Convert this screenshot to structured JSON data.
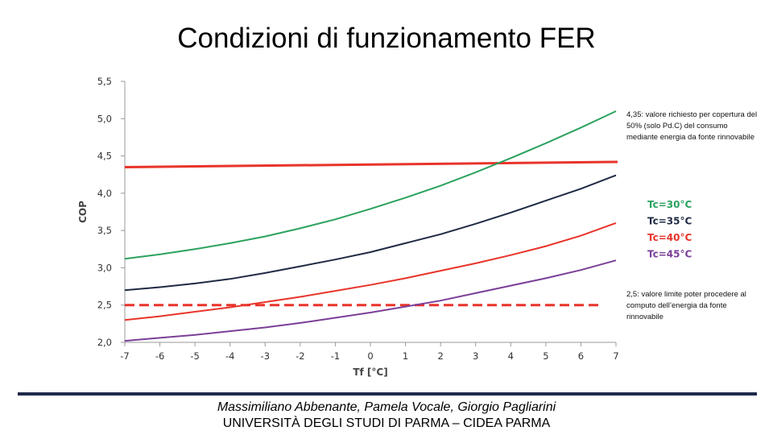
{
  "slide": {
    "title": "Condizioni di funzionamento FER",
    "footer_authors": "Massimiliano Abbenante, Pamela Vocale, Giorgio Pagliarini",
    "footer_org": "UNIVERSITÀ DEGLI STUDI DI PARMA – CIDEA PARMA"
  },
  "chart_data": {
    "type": "line",
    "title": "",
    "xlabel": "Tf [°C]",
    "ylabel": "COP",
    "xlim": [
      -7,
      7
    ],
    "ylim": [
      2.0,
      5.5
    ],
    "x": [
      -7,
      -6,
      -5,
      -4,
      -3,
      -2,
      -1,
      0,
      1,
      2,
      3,
      4,
      5,
      6,
      7
    ],
    "x_tick_labels": [
      "-7",
      "-6",
      "-5",
      "-4",
      "-3",
      "-2",
      "-1",
      "0",
      "1",
      "2",
      "3",
      "4",
      "5",
      "6",
      "7"
    ],
    "y_ticks": [
      2.0,
      2.5,
      3.0,
      3.5,
      4.0,
      4.5,
      5.0,
      5.5
    ],
    "y_tick_labels": [
      "2,0",
      "2,5",
      "3,0",
      "3,5",
      "4,0",
      "4,5",
      "5,0",
      "5,5"
    ],
    "grid": false,
    "legend_position": "right",
    "series": [
      {
        "name": "Tc=30°C",
        "color": "#2ca25f",
        "values": [
          3.12,
          3.18,
          3.25,
          3.33,
          3.42,
          3.53,
          3.65,
          3.79,
          3.94,
          4.1,
          4.28,
          4.47,
          4.67,
          4.88,
          5.1
        ]
      },
      {
        "name": "Tc=35°C",
        "color": "#1f2a44",
        "values": [
          2.7,
          2.74,
          2.79,
          2.85,
          2.93,
          3.02,
          3.11,
          3.21,
          3.33,
          3.45,
          3.59,
          3.74,
          3.9,
          4.06,
          4.24
        ]
      },
      {
        "name": "Tc=40°C",
        "color": "#e8342b",
        "values": [
          2.3,
          2.35,
          2.41,
          2.47,
          2.54,
          2.61,
          2.69,
          2.77,
          2.86,
          2.96,
          3.06,
          3.17,
          3.29,
          3.43,
          3.6
        ]
      },
      {
        "name": "Tc=45°C",
        "color": "#7b3f98",
        "values": [
          2.02,
          2.06,
          2.1,
          2.15,
          2.2,
          2.26,
          2.33,
          2.4,
          2.48,
          2.56,
          2.66,
          2.76,
          2.86,
          2.97,
          3.1
        ]
      }
    ],
    "reference_lines": [
      {
        "value": 4.35,
        "end_value": 4.42,
        "style": "solid",
        "color": "#e8342b",
        "annotation": "4,35: valore richiesto per copertura del 50% (solo Pd.C) del consumo mediante energia da fonte rinnovabile"
      },
      {
        "value": 2.5,
        "end_value": 2.5,
        "style": "dashed",
        "color": "#e8342b",
        "annotation": "2,5: valore limite poter procedere al computo dell’energia da fonte rinnovabile"
      }
    ]
  }
}
